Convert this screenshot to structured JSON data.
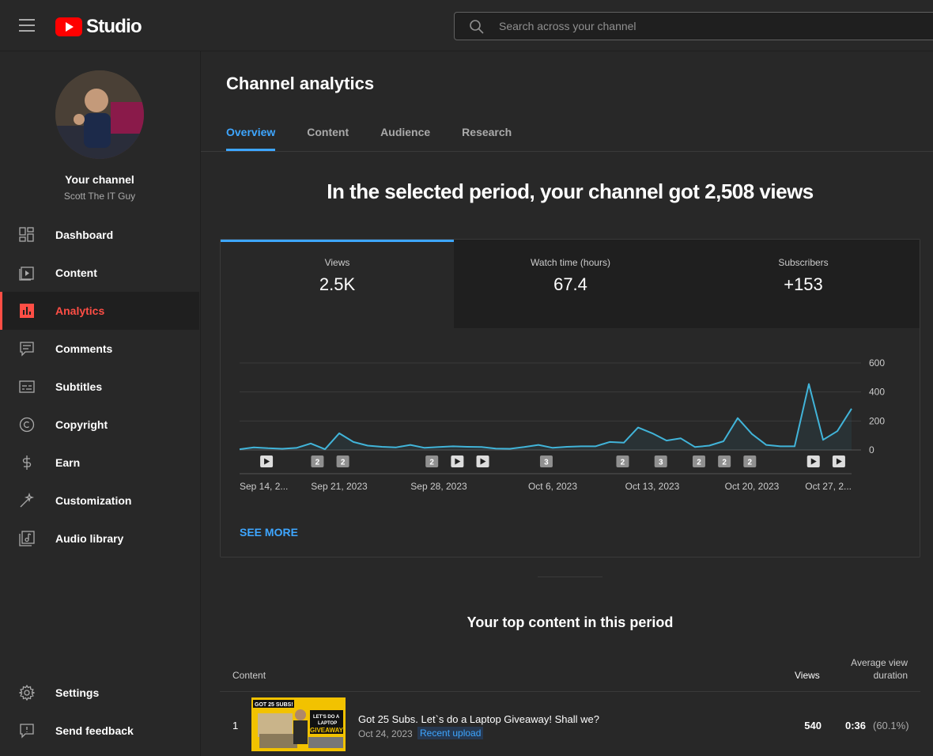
{
  "app": {
    "logo_text": "Studio",
    "search_placeholder": "Search across your channel"
  },
  "channel": {
    "label": "Your channel",
    "name": "Scott The IT Guy"
  },
  "sidebar": {
    "items": [
      {
        "label": "Dashboard",
        "icon": "dashboard-icon"
      },
      {
        "label": "Content",
        "icon": "content-icon"
      },
      {
        "label": "Analytics",
        "icon": "analytics-icon",
        "active": true
      },
      {
        "label": "Comments",
        "icon": "comments-icon"
      },
      {
        "label": "Subtitles",
        "icon": "subtitles-icon"
      },
      {
        "label": "Copyright",
        "icon": "copyright-icon"
      },
      {
        "label": "Earn",
        "icon": "earn-icon"
      },
      {
        "label": "Customization",
        "icon": "customization-icon"
      },
      {
        "label": "Audio library",
        "icon": "audio-library-icon"
      }
    ],
    "bottom_items": [
      {
        "label": "Settings",
        "icon": "gear-icon"
      },
      {
        "label": "Send feedback",
        "icon": "feedback-icon"
      }
    ]
  },
  "main": {
    "title": "Channel analytics",
    "tabs": [
      "Overview",
      "Content",
      "Audience",
      "Research"
    ],
    "active_tab": "Overview",
    "headline": "In the selected period, your channel got 2,508 views",
    "metrics": [
      {
        "label": "Views",
        "value": "2.5K"
      },
      {
        "label": "Watch time (hours)",
        "value": "67.4"
      },
      {
        "label": "Subscribers",
        "value": "+153"
      }
    ],
    "see_more": "SEE MORE",
    "top_content_title": "Your top content in this period",
    "table": {
      "col_content": "Content",
      "col_views": "Views",
      "col_avg_line1": "Average view",
      "col_avg_line2": "duration",
      "rows": [
        {
          "index": "1",
          "title": "Got 25 Subs. Let`s do a Laptop Giveaway! Shall we?",
          "date": "Oct 24, 2023",
          "badge": "Recent upload",
          "views": "540",
          "avg_duration": "0:36",
          "avg_pct": "(60.1%)",
          "thumb_text": [
            "GOT 25 SUBS!",
            "LET'S DO A",
            "LAPTOP",
            "GIVEAWAY?"
          ]
        }
      ]
    }
  },
  "chart_data": {
    "type": "line",
    "series": [
      {
        "values": [
          5,
          18,
          12,
          8,
          14,
          45,
          5,
          115,
          55,
          30,
          22,
          18,
          35,
          15,
          20,
          25,
          22,
          20,
          10,
          8,
          20,
          35,
          15,
          22,
          25,
          25,
          55,
          50,
          155,
          115,
          65,
          80,
          20,
          30,
          60,
          220,
          110,
          35,
          25,
          25,
          455,
          70,
          130,
          285
        ]
      }
    ],
    "x_tick_labels": [
      "Sep 14, 2...",
      "Sep 21, 2023",
      "Sep 28, 2023",
      "Oct 6, 2023",
      "Oct 13, 2023",
      "Oct 20, 2023",
      "Oct 27, 2..."
    ],
    "x_tick_index": [
      0,
      7,
      14,
      22,
      29,
      36,
      43
    ],
    "y_ticks": [
      0,
      200,
      400,
      600
    ],
    "ylim": [
      0,
      600
    ],
    "markers": [
      {
        "index": 1,
        "kind": "play"
      },
      {
        "index": 5,
        "kind": "count",
        "label": "2"
      },
      {
        "index": 7,
        "kind": "count",
        "label": "2"
      },
      {
        "index": 14,
        "kind": "count",
        "label": "2"
      },
      {
        "index": 16,
        "kind": "play"
      },
      {
        "index": 18,
        "kind": "play"
      },
      {
        "index": 23,
        "kind": "count",
        "label": "3"
      },
      {
        "index": 29,
        "kind": "count",
        "label": "2"
      },
      {
        "index": 32,
        "kind": "count",
        "label": "3"
      },
      {
        "index": 35,
        "kind": "count",
        "label": "2"
      },
      {
        "index": 37,
        "kind": "count",
        "label": "2"
      },
      {
        "index": 39,
        "kind": "count",
        "label": "2"
      },
      {
        "index": 44,
        "kind": "play"
      },
      {
        "index": 46,
        "kind": "play"
      }
    ],
    "line_color": "#41b4d9"
  }
}
